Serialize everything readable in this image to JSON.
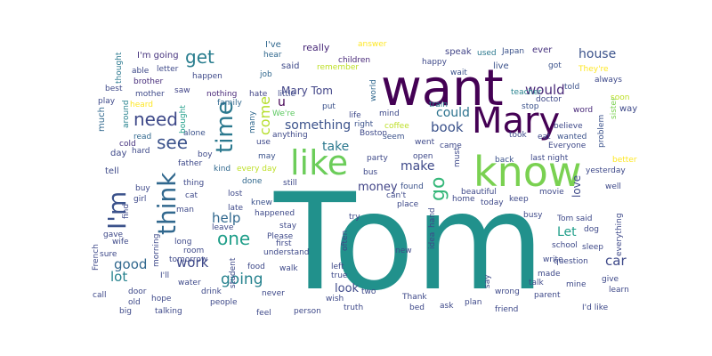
{
  "word_cloud": {
    "words": [
      {
        "text": "Tom",
        "color": "#21918c"
      },
      {
        "text": "want",
        "color": "#440154"
      },
      {
        "text": "know",
        "color": "#7ad151"
      },
      {
        "text": "Mary",
        "color": "#440154"
      },
      {
        "text": "like",
        "color": "#6ccd5a"
      },
      {
        "text": "think",
        "color": "#31688e"
      },
      {
        "text": "I'm",
        "color": "#3b528b"
      },
      {
        "text": "time",
        "color": "#2a788e"
      },
      {
        "text": "go",
        "color": "#35b779"
      },
      {
        "text": "need",
        "color": "#3e4989"
      },
      {
        "text": "get",
        "color": "#287d8e"
      },
      {
        "text": "see",
        "color": "#3b528b"
      },
      {
        "text": "one",
        "color": "#1f9e89"
      },
      {
        "text": "going",
        "color": "#26828e"
      },
      {
        "text": "help",
        "color": "#31688e"
      },
      {
        "text": "work",
        "color": "#3e4989"
      },
      {
        "text": "book",
        "color": "#3b528b"
      },
      {
        "text": "would",
        "color": "#482878"
      },
      {
        "text": "could",
        "color": "#2c728e"
      },
      {
        "text": "something",
        "color": "#3b528b"
      },
      {
        "text": "come",
        "color": "#b5de2b"
      },
      {
        "text": "good",
        "color": "#31688e"
      },
      {
        "text": "lot",
        "color": "#26828e"
      },
      {
        "text": "car",
        "color": "#3e4989"
      },
      {
        "text": "make",
        "color": "#3e4989"
      },
      {
        "text": "money",
        "color": "#414487"
      },
      {
        "text": "take",
        "color": "#2a788e"
      },
      {
        "text": "look",
        "color": "#3e4989"
      },
      {
        "text": "house",
        "color": "#3b528b"
      },
      {
        "text": "Let",
        "color": "#1f9e89"
      },
      {
        "text": "Mary Tom",
        "color": "#414487"
      },
      {
        "text": "u",
        "color": "#440154"
      },
      {
        "text": "love",
        "color": "#3e4989"
      },
      {
        "text": "I've",
        "color": "#31688e"
      },
      {
        "text": "really",
        "color": "#482878"
      },
      {
        "text": "answer",
        "color": "#fde725"
      },
      {
        "text": "speak",
        "color": "#414487"
      },
      {
        "text": "used",
        "color": "#2a788e"
      },
      {
        "text": "Japan",
        "color": "#3b528b"
      },
      {
        "text": "ever",
        "color": "#46327e"
      },
      {
        "text": "I'm going",
        "color": "#46337e"
      },
      {
        "text": "thought",
        "color": "#2a788e"
      },
      {
        "text": "able",
        "color": "#3e4989"
      },
      {
        "text": "letter",
        "color": "#3e4989"
      },
      {
        "text": "hear",
        "color": "#31688e"
      },
      {
        "text": "said",
        "color": "#3e4989"
      },
      {
        "text": "children",
        "color": "#482878"
      },
      {
        "text": "remember",
        "color": "#bddf26"
      },
      {
        "text": "happy",
        "color": "#3e4989"
      },
      {
        "text": "live",
        "color": "#3b528b"
      },
      {
        "text": "got",
        "color": "#3b528b"
      },
      {
        "text": "They're",
        "color": "#fde725"
      },
      {
        "text": "wait",
        "color": "#3b528b"
      },
      {
        "text": "brother",
        "color": "#472d7b"
      },
      {
        "text": "happen",
        "color": "#3e4989"
      },
      {
        "text": "job",
        "color": "#31688e"
      },
      {
        "text": "best",
        "color": "#3e4989"
      },
      {
        "text": "mother",
        "color": "#3e4989"
      },
      {
        "text": "saw",
        "color": "#414487"
      },
      {
        "text": "nothing",
        "color": "#482878"
      },
      {
        "text": "hate",
        "color": "#414487"
      },
      {
        "text": "little",
        "color": "#3e4989"
      },
      {
        "text": "world",
        "color": "#31688e"
      },
      {
        "text": "teacher",
        "color": "#26828e"
      },
      {
        "text": "told",
        "color": "#3b528b"
      },
      {
        "text": "always",
        "color": "#3e4989"
      },
      {
        "text": "soon",
        "color": "#bddf26"
      },
      {
        "text": "play",
        "color": "#3e4989"
      },
      {
        "text": "family",
        "color": "#31688e"
      },
      {
        "text": "train",
        "color": "#26828e"
      },
      {
        "text": "doctor",
        "color": "#3e4989"
      },
      {
        "text": "stop",
        "color": "#3b528b"
      },
      {
        "text": "word",
        "color": "#482878"
      },
      {
        "text": "sister",
        "color": "#7ad151"
      },
      {
        "text": "way",
        "color": "#3e4989"
      },
      {
        "text": "heard",
        "color": "#fde725"
      },
      {
        "text": "put",
        "color": "#3b528b"
      },
      {
        "text": "life",
        "color": "#3e4989"
      },
      {
        "text": "mind",
        "color": "#3e4989"
      },
      {
        "text": "We're",
        "color": "#5ec962"
      },
      {
        "text": "much",
        "color": "#31688e"
      },
      {
        "text": "around",
        "color": "#26828e"
      },
      {
        "text": "bought",
        "color": "#1f9e89"
      },
      {
        "text": "alone",
        "color": "#3b528b"
      },
      {
        "text": "many",
        "color": "#31688e"
      },
      {
        "text": "right",
        "color": "#3b528b"
      },
      {
        "text": "coffee",
        "color": "#bddf26"
      },
      {
        "text": "believe",
        "color": "#3e4989"
      },
      {
        "text": "problem",
        "color": "#3b528b"
      },
      {
        "text": "read",
        "color": "#31688e"
      },
      {
        "text": "cold",
        "color": "#46327e"
      },
      {
        "text": "use",
        "color": "#3e4989"
      },
      {
        "text": "anything",
        "color": "#3e4989"
      },
      {
        "text": "seem",
        "color": "#3b528b"
      },
      {
        "text": "took",
        "color": "#3e4989"
      },
      {
        "text": "eat",
        "color": "#3e4989"
      },
      {
        "text": "wanted",
        "color": "#3b528b"
      },
      {
        "text": "day",
        "color": "#3e4989"
      },
      {
        "text": "hard",
        "color": "#3e4989"
      },
      {
        "text": "boy",
        "color": "#3e4989"
      },
      {
        "text": "may",
        "color": "#3b528b"
      },
      {
        "text": "party",
        "color": "#3e4989"
      },
      {
        "text": "went",
        "color": "#3e4989"
      },
      {
        "text": "came",
        "color": "#3e4989"
      },
      {
        "text": "Everyone",
        "color": "#3e4989"
      },
      {
        "text": "kind",
        "color": "#31688e"
      },
      {
        "text": "every day",
        "color": "#bddf26"
      },
      {
        "text": "open",
        "color": "#3e4989"
      },
      {
        "text": "back",
        "color": "#3b528b"
      },
      {
        "text": "last night",
        "color": "#3e4989"
      },
      {
        "text": "better",
        "color": "#fde725"
      },
      {
        "text": "tell",
        "color": "#3e4989"
      },
      {
        "text": "father",
        "color": "#3e4989"
      },
      {
        "text": "bus",
        "color": "#3e4989"
      },
      {
        "text": "must",
        "color": "#3e4989"
      },
      {
        "text": "yesterday",
        "color": "#3e4989"
      },
      {
        "text": "buy",
        "color": "#3e4989"
      },
      {
        "text": "thing",
        "color": "#3e4989"
      },
      {
        "text": "done",
        "color": "#31688e"
      },
      {
        "text": "still",
        "color": "#3e4989"
      },
      {
        "text": "found",
        "color": "#3b528b"
      },
      {
        "text": "beautiful",
        "color": "#3e4989"
      },
      {
        "text": "movie",
        "color": "#3e4989"
      },
      {
        "text": "well",
        "color": "#3e4989"
      },
      {
        "text": "girl",
        "color": "#3e4989"
      },
      {
        "text": "cat",
        "color": "#3e4989"
      },
      {
        "text": "lost",
        "color": "#3e4989"
      },
      {
        "text": "knew",
        "color": "#3b528b"
      },
      {
        "text": "can't",
        "color": "#3e4989"
      },
      {
        "text": "today",
        "color": "#3e4989"
      },
      {
        "text": "keep",
        "color": "#3e4989"
      },
      {
        "text": "home",
        "color": "#3e4989"
      },
      {
        "text": "place",
        "color": "#3e4989"
      },
      {
        "text": "idea",
        "color": "#3e4989"
      },
      {
        "text": "hand",
        "color": "#3e4989"
      },
      {
        "text": "find",
        "color": "#3e4989"
      },
      {
        "text": "man",
        "color": "#3e4989"
      },
      {
        "text": "late",
        "color": "#3e4989"
      },
      {
        "text": "happened",
        "color": "#3e4989"
      },
      {
        "text": "busy",
        "color": "#3e4989"
      },
      {
        "text": "Tom said",
        "color": "#3e4989"
      },
      {
        "text": "dog",
        "color": "#3e4989"
      },
      {
        "text": "gave",
        "color": "#3e4989"
      },
      {
        "text": "leave",
        "color": "#3e4989"
      },
      {
        "text": "stay",
        "color": "#3e4989"
      },
      {
        "text": "try",
        "color": "#3e4989"
      },
      {
        "text": "everything",
        "color": "#3e4989"
      },
      {
        "text": "wife",
        "color": "#3e4989"
      },
      {
        "text": "long",
        "color": "#3e4989"
      },
      {
        "text": "Please",
        "color": "#3e4989"
      },
      {
        "text": "first",
        "color": "#3e4989"
      },
      {
        "text": "often",
        "color": "#3e4989"
      },
      {
        "text": "new",
        "color": "#3e4989"
      },
      {
        "text": "school",
        "color": "#3e4989"
      },
      {
        "text": "sleep",
        "color": "#3e4989"
      },
      {
        "text": "French",
        "color": "#3e4989"
      },
      {
        "text": "sure",
        "color": "#3e4989"
      },
      {
        "text": "morning",
        "color": "#3e4989"
      },
      {
        "text": "room",
        "color": "#3e4989"
      },
      {
        "text": "I'll",
        "color": "#3e4989"
      },
      {
        "text": "tomorrow",
        "color": "#3e4989"
      },
      {
        "text": "student",
        "color": "#3e4989"
      },
      {
        "text": "food",
        "color": "#3e4989"
      },
      {
        "text": "understand",
        "color": "#3e4989"
      },
      {
        "text": "walk",
        "color": "#3e4989"
      },
      {
        "text": "left",
        "color": "#3e4989"
      },
      {
        "text": "true",
        "color": "#3e4989"
      },
      {
        "text": "write",
        "color": "#3e4989"
      },
      {
        "text": "question",
        "color": "#3e4989"
      },
      {
        "text": "call",
        "color": "#3e4989"
      },
      {
        "text": "door",
        "color": "#3e4989"
      },
      {
        "text": "hope",
        "color": "#3e4989"
      },
      {
        "text": "water",
        "color": "#3e4989"
      },
      {
        "text": "drink",
        "color": "#3e4989"
      },
      {
        "text": "never",
        "color": "#3e4989"
      },
      {
        "text": "wish",
        "color": "#3e4989"
      },
      {
        "text": "two",
        "color": "#3e4989"
      },
      {
        "text": "say",
        "color": "#3e4989"
      },
      {
        "text": "talk",
        "color": "#3e4989"
      },
      {
        "text": "made",
        "color": "#3e4989"
      },
      {
        "text": "mine",
        "color": "#3e4989"
      },
      {
        "text": "give",
        "color": "#3e4989"
      },
      {
        "text": "learn",
        "color": "#3e4989"
      },
      {
        "text": "old",
        "color": "#3e4989"
      },
      {
        "text": "people",
        "color": "#3e4989"
      },
      {
        "text": "Thank",
        "color": "#3e4989"
      },
      {
        "text": "wrong",
        "color": "#3e4989"
      },
      {
        "text": "parent",
        "color": "#3e4989"
      },
      {
        "text": "big",
        "color": "#3e4989"
      },
      {
        "text": "talking",
        "color": "#3e4989"
      },
      {
        "text": "feel",
        "color": "#3e4989"
      },
      {
        "text": "person",
        "color": "#3e4989"
      },
      {
        "text": "truth",
        "color": "#3e4989"
      },
      {
        "text": "bed",
        "color": "#3e4989"
      },
      {
        "text": "ask",
        "color": "#3e4989"
      },
      {
        "text": "plan",
        "color": "#3e4989"
      },
      {
        "text": "friend",
        "color": "#3e4989"
      },
      {
        "text": "I'd like",
        "color": "#3e4989"
      },
      {
        "text": "Boston",
        "color": "#3e4989"
      }
    ]
  }
}
